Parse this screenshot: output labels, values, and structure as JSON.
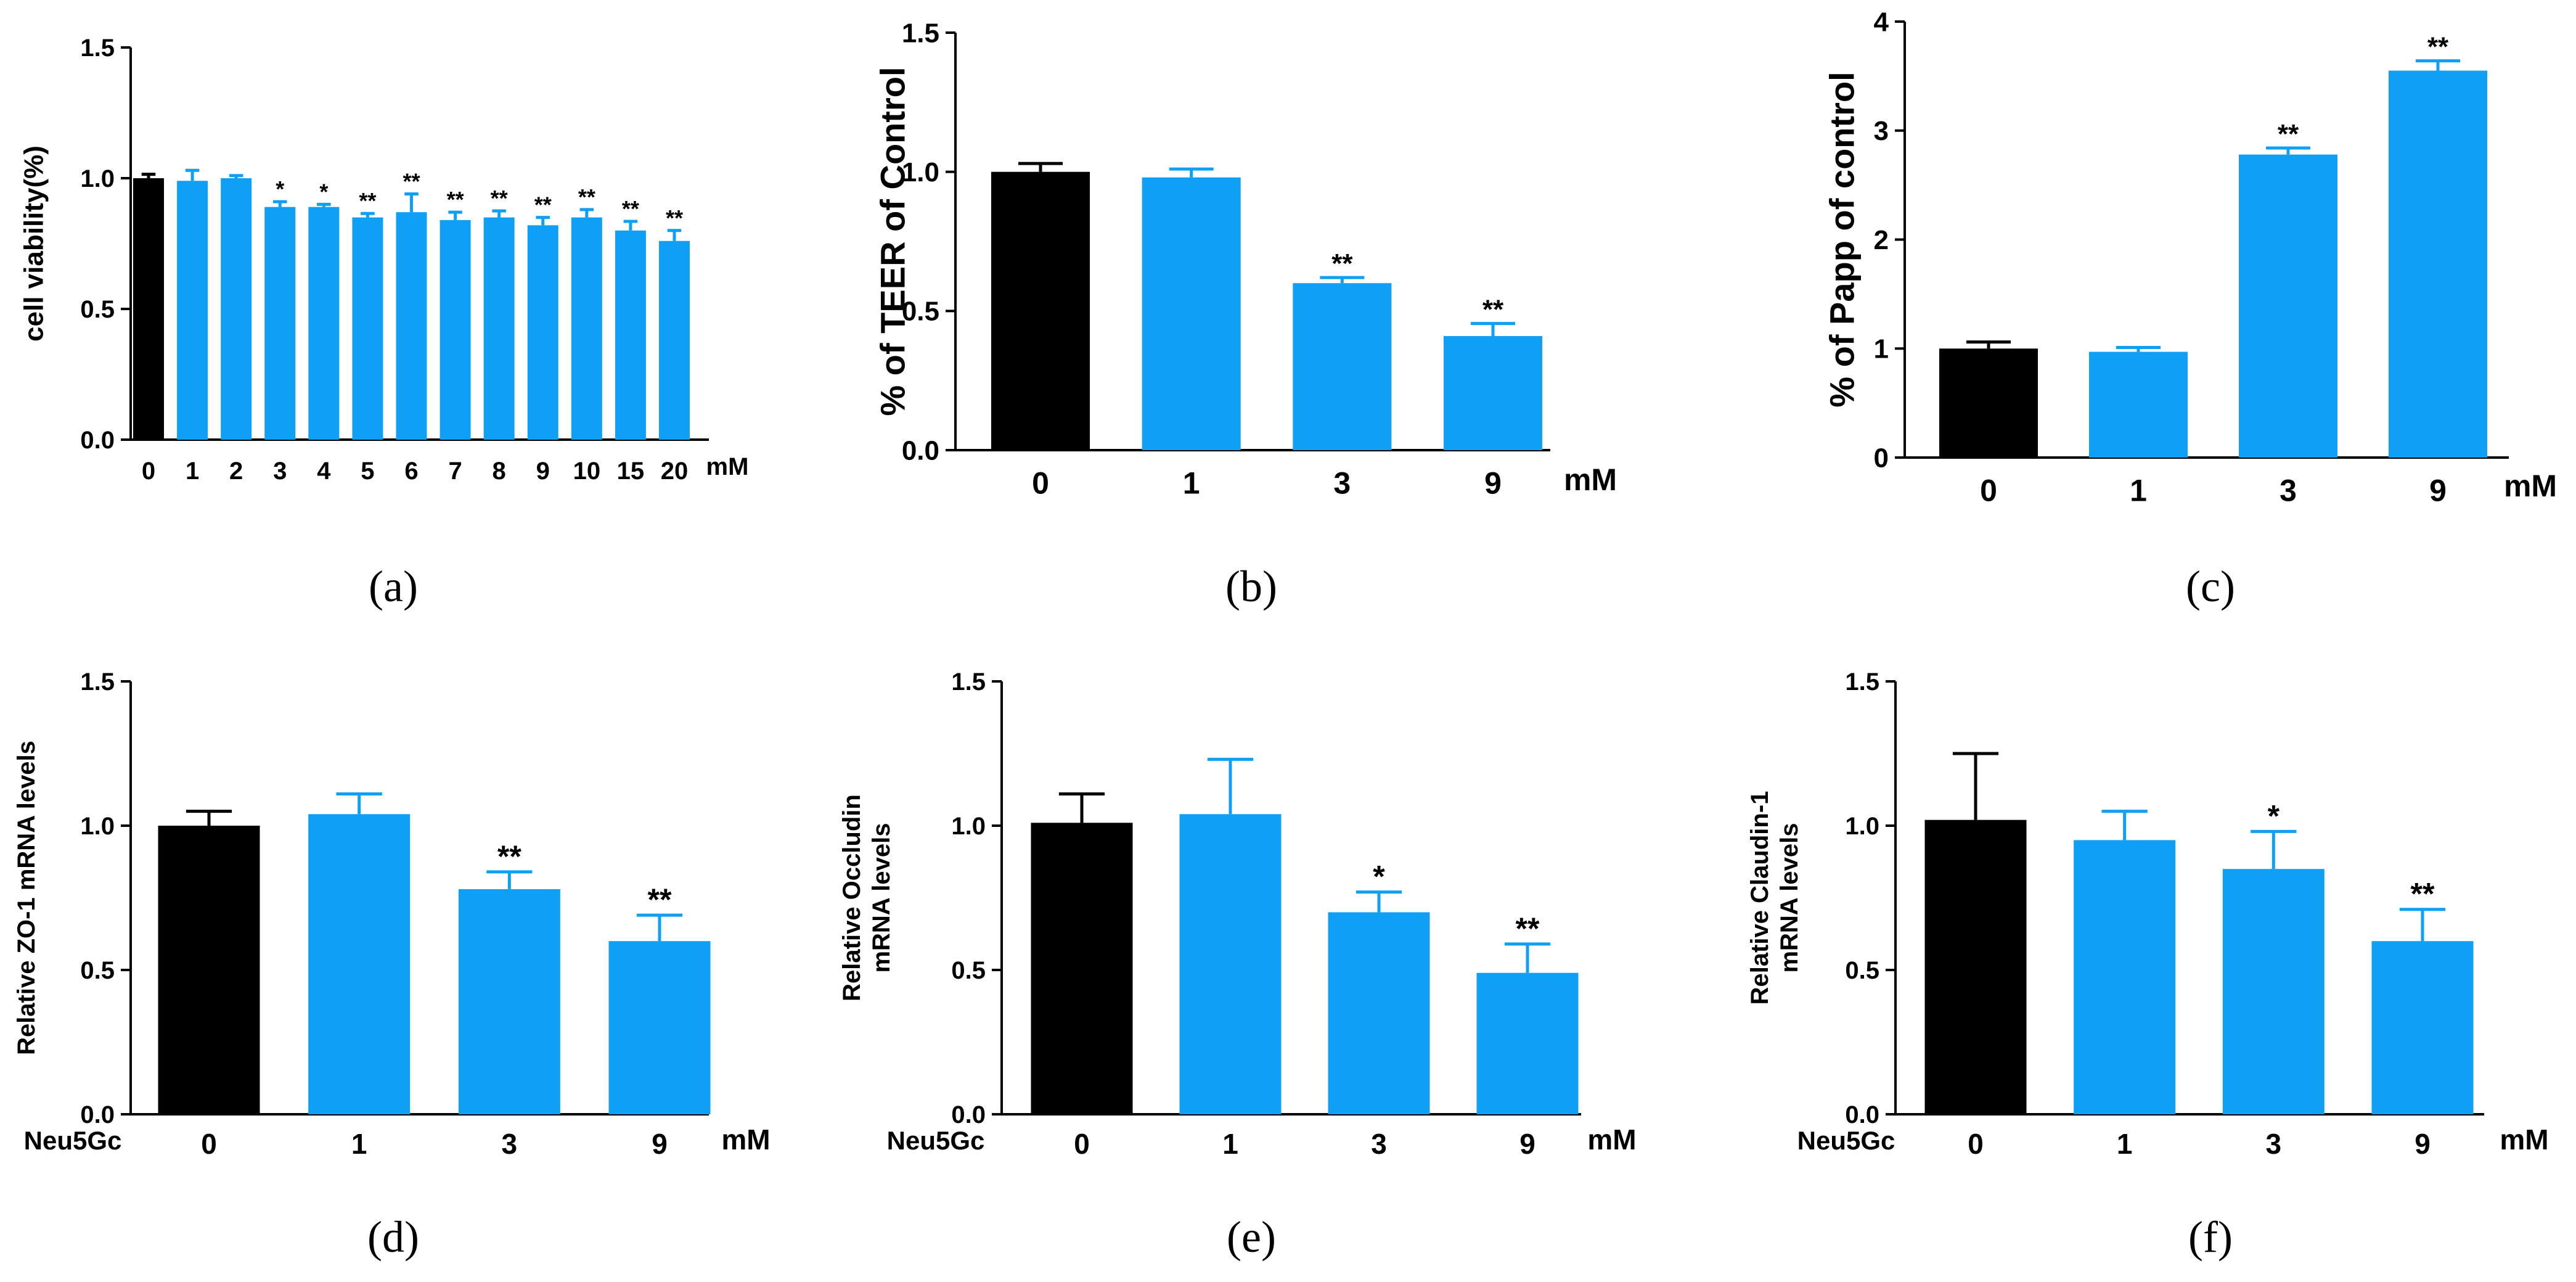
{
  "colors": {
    "control": "#000000",
    "treatment": "#0fa0f5",
    "axis": "#000000"
  },
  "chart_data": [
    {
      "panel": "(a)",
      "type": "bar",
      "ylabel": "cell viability(%)",
      "unit_label": "mM",
      "group_label": "",
      "categories": [
        "0",
        "1",
        "2",
        "3",
        "4",
        "5",
        "6",
        "7",
        "8",
        "9",
        "10",
        "15",
        "20"
      ],
      "values": [
        1.0,
        0.99,
        1.0,
        0.89,
        0.89,
        0.85,
        0.87,
        0.84,
        0.85,
        0.82,
        0.85,
        0.8,
        0.76
      ],
      "errors": [
        0.015,
        0.04,
        0.01,
        0.02,
        0.01,
        0.015,
        0.07,
        0.03,
        0.025,
        0.03,
        0.03,
        0.035,
        0.04
      ],
      "significance": [
        "",
        "",
        "",
        "*",
        "*",
        "**",
        "**",
        "**",
        "**",
        "**",
        "**",
        "**",
        "**"
      ],
      "ylim": [
        0,
        1.5
      ],
      "yticks": [
        "0.0",
        "0.5",
        "1.0",
        "1.5"
      ]
    },
    {
      "panel": "(b)",
      "type": "bar",
      "ylabel": "% of TEER  of Control",
      "unit_label": "mM",
      "group_label": "",
      "categories": [
        "0",
        "1",
        "3",
        "9"
      ],
      "values": [
        1.0,
        0.98,
        0.6,
        0.41
      ],
      "errors": [
        0.03,
        0.03,
        0.02,
        0.045
      ],
      "significance": [
        "",
        "",
        "**",
        "**"
      ],
      "ylim": [
        0,
        1.5
      ],
      "yticks": [
        "0.0",
        "0.5",
        "1.0",
        "1.5"
      ]
    },
    {
      "panel": "(c)",
      "type": "bar",
      "ylabel": "% of Papp of control",
      "unit_label": "mM",
      "group_label": "",
      "categories": [
        "0",
        "1",
        "3",
        "9"
      ],
      "values": [
        1.0,
        0.97,
        2.78,
        3.55
      ],
      "errors": [
        0.06,
        0.04,
        0.06,
        0.09
      ],
      "significance": [
        "",
        "",
        "**",
        "**"
      ],
      "ylim": [
        0,
        4
      ],
      "yticks": [
        "0",
        "1",
        "2",
        "3",
        "4"
      ]
    },
    {
      "panel": "(d)",
      "type": "bar",
      "ylabel": "Relative ZO-1 mRNA levels",
      "unit_label": "mM",
      "group_label": "Neu5Gc",
      "categories": [
        "0",
        "1",
        "3",
        "9"
      ],
      "values": [
        1.0,
        1.04,
        0.78,
        0.6
      ],
      "errors": [
        0.05,
        0.07,
        0.06,
        0.09
      ],
      "significance": [
        "",
        "",
        "**",
        "**"
      ],
      "ylim": [
        0,
        1.5
      ],
      "yticks": [
        "0.0",
        "0.5",
        "1.0",
        "1.5"
      ]
    },
    {
      "panel": "(e)",
      "type": "bar",
      "ylabel": "Relative Occludin\nmRNA levels",
      "unit_label": "mM",
      "group_label": "Neu5Gc",
      "categories": [
        "0",
        "1",
        "3",
        "9"
      ],
      "values": [
        1.01,
        1.04,
        0.7,
        0.49
      ],
      "errors": [
        0.1,
        0.19,
        0.07,
        0.1
      ],
      "significance": [
        "",
        "",
        "*",
        "**"
      ],
      "ylim": [
        0,
        1.5
      ],
      "yticks": [
        "0.0",
        "0.5",
        "1.0",
        "1.5"
      ]
    },
    {
      "panel": "(f)",
      "type": "bar",
      "ylabel": "Relative Claudin-1\nmRNA levels",
      "unit_label": "mM",
      "group_label": "Neu5Gc",
      "categories": [
        "0",
        "1",
        "3",
        "9"
      ],
      "values": [
        1.02,
        0.95,
        0.85,
        0.6
      ],
      "errors": [
        0.23,
        0.1,
        0.13,
        0.11
      ],
      "significance": [
        "",
        "",
        "*",
        "**"
      ],
      "ylim": [
        0,
        1.5
      ],
      "yticks": [
        "0.0",
        "0.5",
        "1.0",
        "1.5"
      ]
    }
  ]
}
